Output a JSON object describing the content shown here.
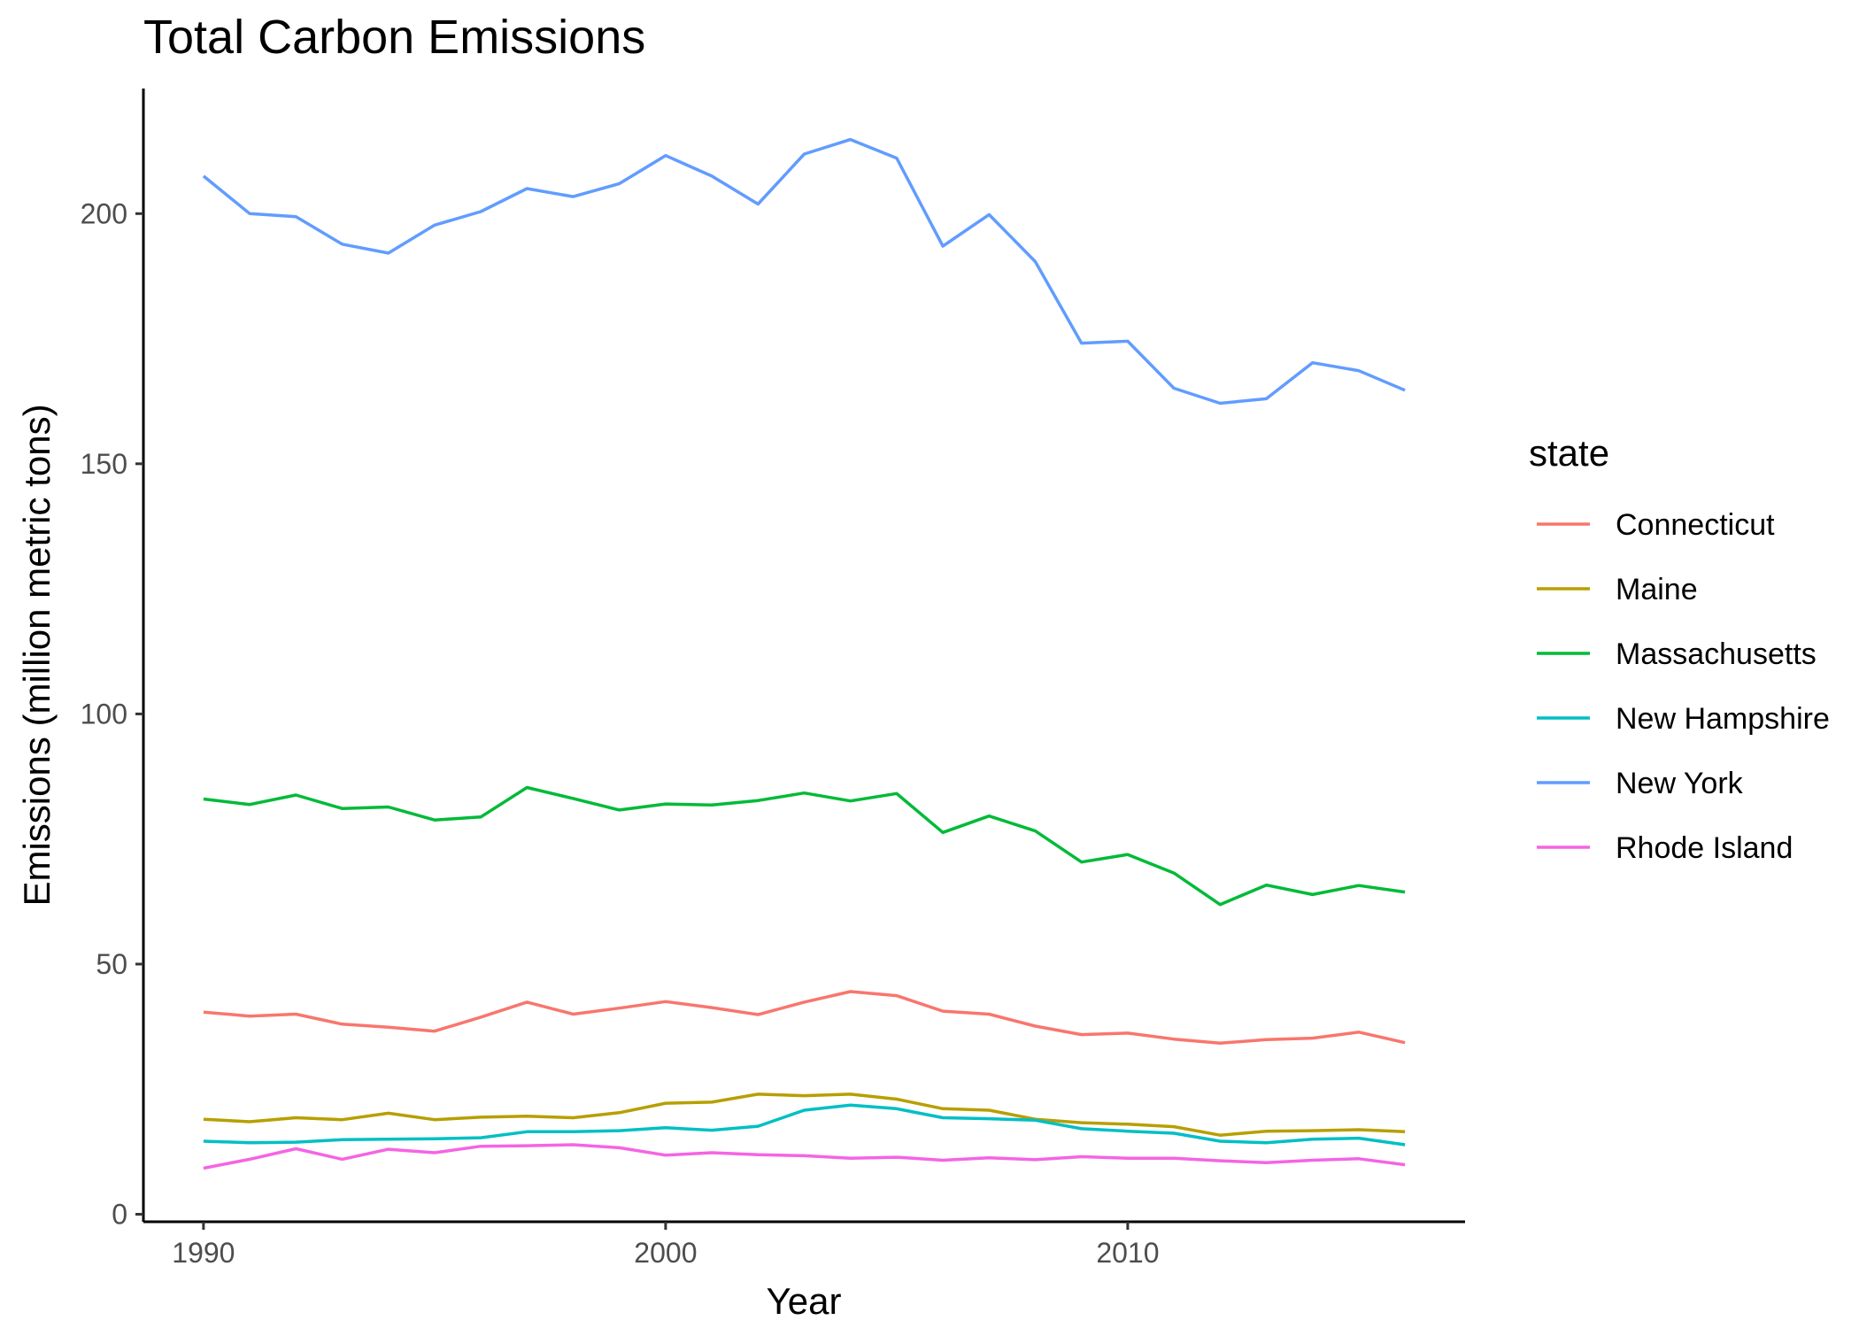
{
  "chart_data": {
    "type": "line",
    "title": "Total Carbon Emissions",
    "xlabel": "Year",
    "ylabel": "Emissions (million metric tons)",
    "xlim": [
      1988.7,
      2017.3
    ],
    "ylim": [
      -1.5,
      225
    ],
    "x_ticks": [
      1990,
      2000,
      2010
    ],
    "x_tick_labels": [
      "1990",
      "2000",
      "2010"
    ],
    "y_ticks": [
      0,
      50,
      100,
      150,
      200
    ],
    "y_tick_labels": [
      "0",
      "50",
      "100",
      "150",
      "200"
    ],
    "grid": false,
    "legend": {
      "title": "state",
      "position": "right"
    },
    "x": [
      1990,
      1991,
      1992,
      1993,
      1994,
      1995,
      1996,
      1997,
      1998,
      1999,
      2000,
      2001,
      2002,
      2003,
      2004,
      2005,
      2006,
      2007,
      2008,
      2009,
      2010,
      2011,
      2012,
      2013,
      2014,
      2015,
      2016
    ],
    "series": [
      {
        "name": "Connecticut",
        "color": "#F8766D",
        "values": [
          40.4,
          39.6,
          40.0,
          38.0,
          37.4,
          36.6,
          39.4,
          42.4,
          40.0,
          41.2,
          42.5,
          41.3,
          39.9,
          42.4,
          44.5,
          43.7,
          40.6,
          40.0,
          37.6,
          35.9,
          36.2,
          35.0,
          34.2,
          34.9,
          35.2,
          36.4,
          34.3
        ]
      },
      {
        "name": "Maine",
        "color": "#B79F00",
        "values": [
          19.0,
          18.5,
          19.3,
          18.9,
          20.2,
          18.9,
          19.4,
          19.6,
          19.3,
          20.3,
          22.2,
          22.4,
          24.0,
          23.7,
          24.0,
          23.0,
          21.1,
          20.8,
          19.0,
          18.3,
          18.0,
          17.5,
          15.8,
          16.6,
          16.7,
          16.9,
          16.5
        ]
      },
      {
        "name": "Massachusetts",
        "color": "#00BA38",
        "values": [
          83.0,
          81.9,
          83.8,
          81.1,
          81.4,
          78.8,
          79.4,
          85.3,
          83.1,
          80.8,
          82.0,
          81.8,
          82.7,
          84.2,
          82.6,
          84.1,
          76.3,
          79.6,
          76.6,
          70.4,
          71.9,
          68.2,
          61.9,
          65.8,
          63.9,
          65.7,
          64.4
        ]
      },
      {
        "name": "New Hampshire",
        "color": "#00BFC4",
        "values": [
          14.6,
          14.3,
          14.4,
          14.9,
          15.0,
          15.1,
          15.3,
          16.5,
          16.5,
          16.7,
          17.3,
          16.8,
          17.6,
          20.8,
          21.8,
          21.1,
          19.3,
          19.1,
          18.8,
          17.1,
          16.6,
          16.2,
          14.6,
          14.3,
          15.0,
          15.2,
          13.9
        ]
      },
      {
        "name": "New York",
        "color": "#619CFF",
        "values": [
          207.5,
          200.0,
          199.4,
          193.9,
          192.1,
          197.7,
          200.4,
          205.0,
          203.4,
          206.0,
          211.6,
          207.5,
          201.9,
          211.9,
          214.8,
          211.1,
          193.5,
          199.8,
          190.4,
          174.1,
          174.5,
          165.1,
          162.1,
          163.0,
          170.2,
          168.6,
          164.7
        ]
      },
      {
        "name": "Rhode Island",
        "color": "#F564E3",
        "values": [
          9.2,
          11.0,
          13.1,
          11.0,
          13.0,
          12.3,
          13.6,
          13.7,
          13.9,
          13.3,
          11.8,
          12.3,
          11.9,
          11.7,
          11.2,
          11.4,
          10.8,
          11.3,
          10.9,
          11.5,
          11.2,
          11.2,
          10.7,
          10.3,
          10.8,
          11.1,
          9.9
        ]
      }
    ]
  }
}
